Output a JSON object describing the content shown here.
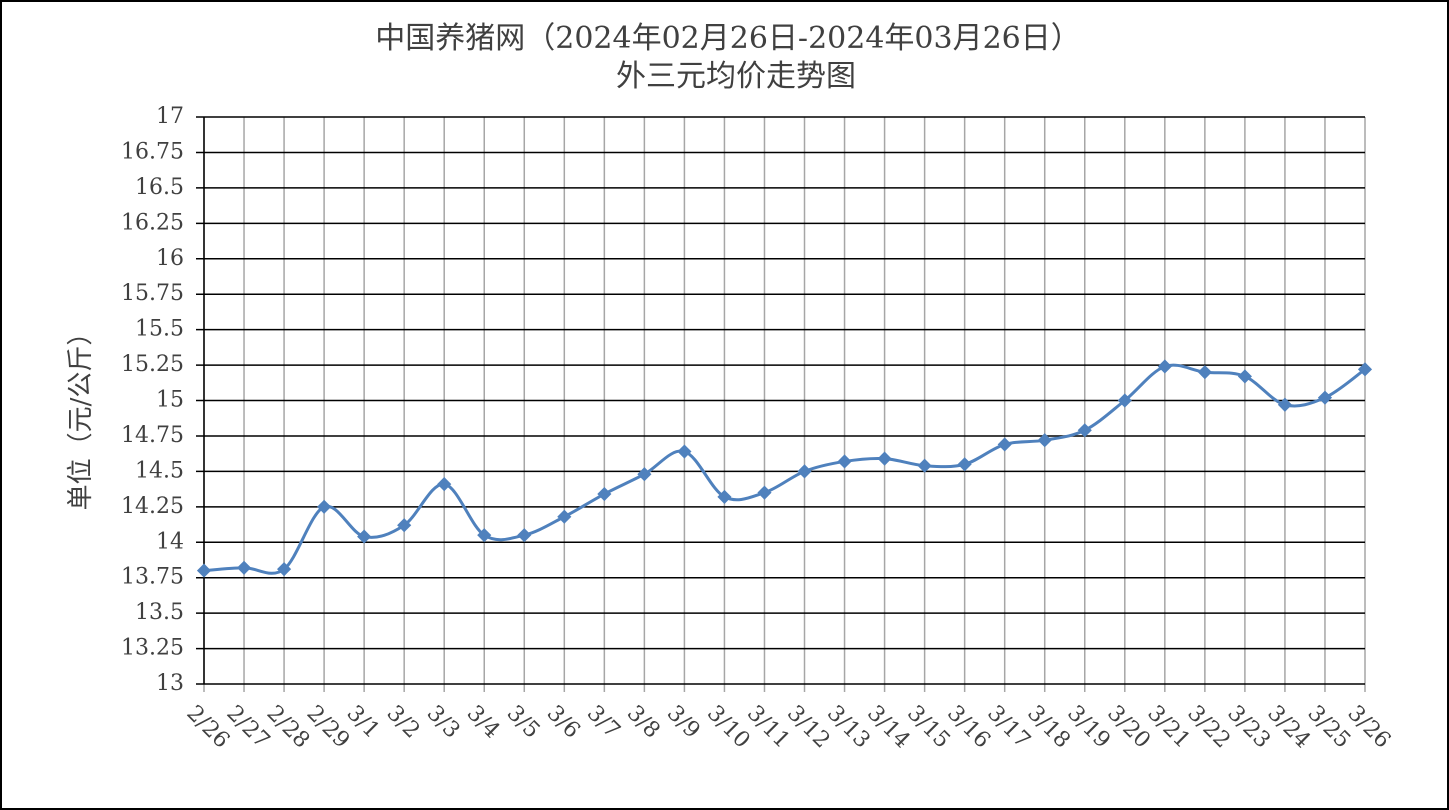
{
  "chart_data": {
    "type": "line",
    "title": "中国养猪网（2024年02月26日-2024年03月26日）",
    "subtitle": "外三元均价走势图",
    "y_label": "单位（元/公斤）",
    "categories": [
      "2/26",
      "2/27",
      "2/28",
      "2/29",
      "3/1",
      "3/2",
      "3/3",
      "3/4",
      "3/5",
      "3/6",
      "3/7",
      "3/8",
      "3/9",
      "3/10",
      "3/11",
      "3/12",
      "3/13",
      "3/14",
      "3/15",
      "3/16",
      "3/17",
      "3/18",
      "3/19",
      "3/20",
      "3/21",
      "3/22",
      "3/23",
      "3/24",
      "3/25",
      "3/26"
    ],
    "values": [
      13.8,
      13.82,
      13.81,
      14.25,
      14.04,
      14.12,
      14.41,
      14.05,
      14.05,
      14.18,
      14.34,
      14.48,
      14.64,
      14.32,
      14.35,
      14.5,
      14.57,
      14.59,
      14.54,
      14.55,
      14.69,
      14.72,
      14.79,
      15.0,
      15.24,
      15.2,
      15.17,
      14.97,
      15.02,
      15.22
    ],
    "color": "#4f81bd",
    "ylim": [
      13,
      17
    ],
    "yticks": [
      13,
      13.25,
      13.5,
      13.75,
      14,
      14.25,
      14.5,
      14.75,
      15,
      15.25,
      15.5,
      15.75,
      16,
      16.25,
      16.5,
      16.75,
      17
    ],
    "grid": true
  }
}
